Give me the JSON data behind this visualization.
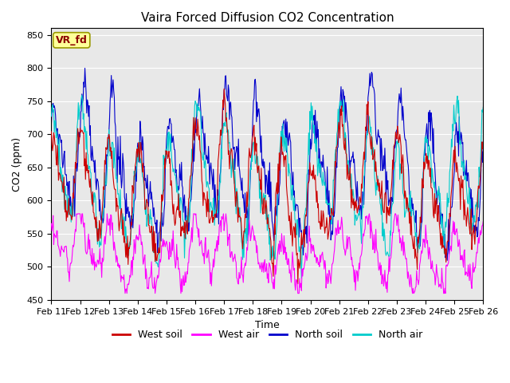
{
  "title": "Vaira Forced Diffusion CO2 Concentration",
  "xlabel": "Time",
  "ylabel": "CO2 (ppm)",
  "ylim": [
    450,
    860
  ],
  "xlim_days": [
    0,
    15
  ],
  "x_tick_labels": [
    "Feb 11",
    "Feb 12",
    "Feb 13",
    "Feb 14",
    "Feb 15",
    "Feb 16",
    "Feb 17",
    "Feb 18",
    "Feb 19",
    "Feb 20",
    "Feb 21",
    "Feb 22",
    "Feb 23",
    "Feb 24",
    "Feb 25",
    "Feb 26"
  ],
  "label_box_text": "VR_fd",
  "colors": {
    "west_soil": "#cc0000",
    "west_air": "#ff00ff",
    "north_soil": "#0000cc",
    "north_air": "#00cccc"
  },
  "bg_color": "#e8e8e8",
  "fig_color": "#ffffff",
  "label_box_bg": "#ffff99",
  "label_box_edge": "#999900",
  "yticks": [
    450,
    500,
    550,
    600,
    650,
    700,
    750,
    800,
    850
  ]
}
